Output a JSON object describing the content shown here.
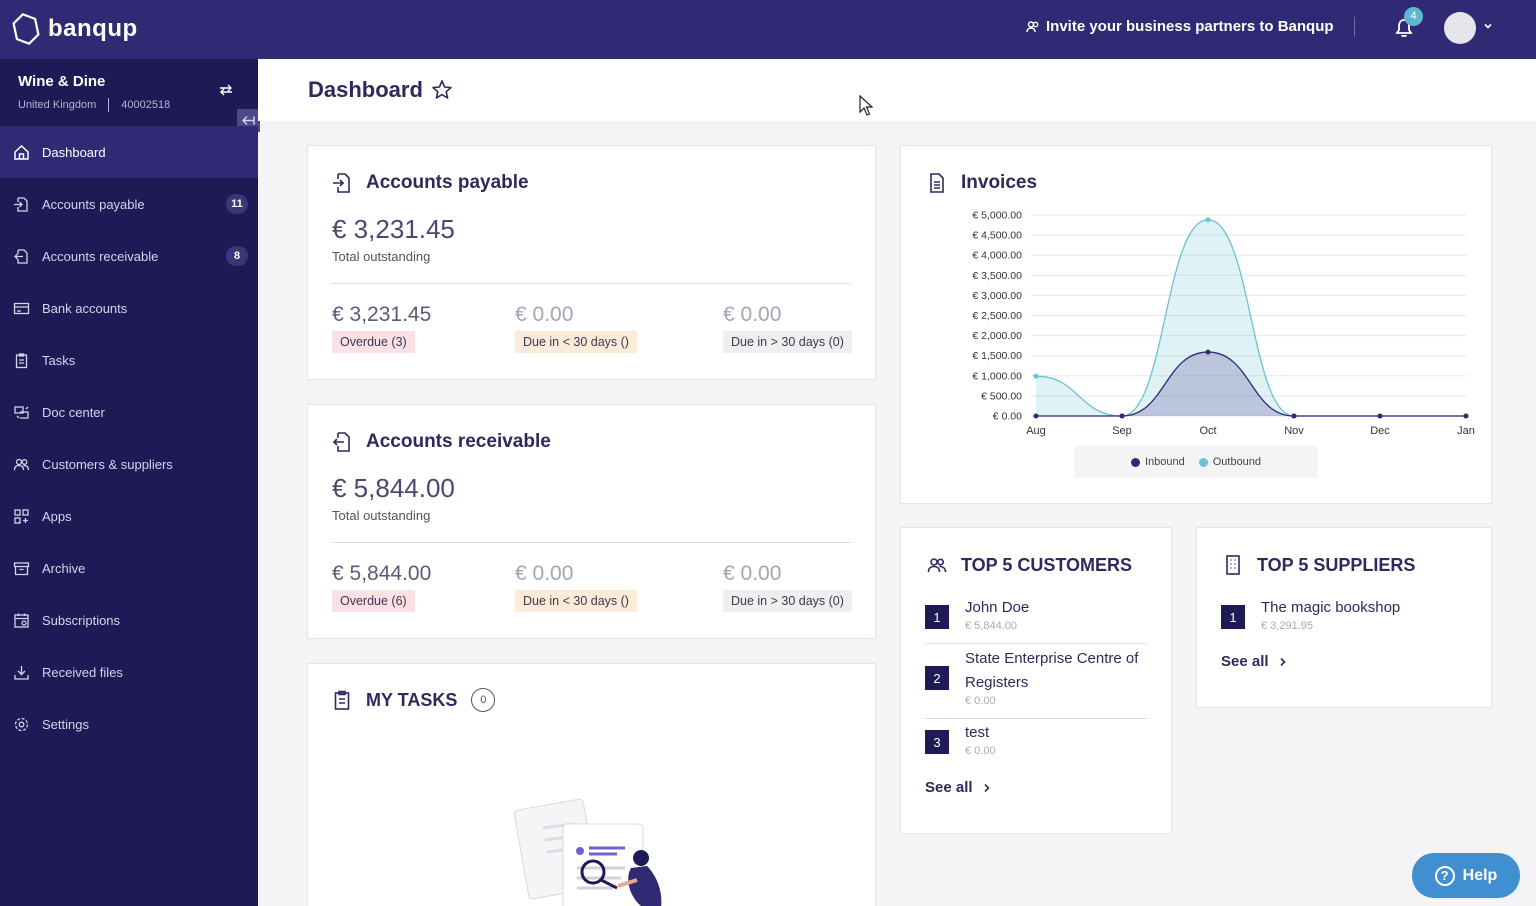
{
  "topbar": {
    "logo": "banqup",
    "invite": "Invite your business partners to Banqup",
    "notifications": "4"
  },
  "company": {
    "name": "Wine & Dine",
    "country": "United Kingdom",
    "id": "40002518"
  },
  "nav": [
    {
      "label": "Dashboard",
      "icon": "home-icon",
      "active": true
    },
    {
      "label": "Accounts payable",
      "icon": "file-in-icon",
      "badge": "11"
    },
    {
      "label": "Accounts receivable",
      "icon": "file-out-icon",
      "badge": "8"
    },
    {
      "label": "Bank accounts",
      "icon": "bank-card-icon"
    },
    {
      "label": "Tasks",
      "icon": "clipboard-icon"
    },
    {
      "label": "Doc center",
      "icon": "doc-center-icon"
    },
    {
      "label": "Customers & suppliers",
      "icon": "people-icon"
    },
    {
      "label": "Apps",
      "icon": "apps-icon"
    },
    {
      "label": "Archive",
      "icon": "archive-icon"
    },
    {
      "label": "Subscriptions",
      "icon": "calendar-icon"
    },
    {
      "label": "Received files",
      "icon": "download-icon"
    },
    {
      "label": "Settings",
      "icon": "gear-icon"
    }
  ],
  "page": {
    "title": "Dashboard"
  },
  "payable": {
    "title": "Accounts payable",
    "total": "€ 3,231.45",
    "total_label": "Total outstanding",
    "overdue_amount": "€ 3,231.45",
    "overdue_label": "Overdue (3)",
    "due_lt_amount": "€ 0.00",
    "due_lt_label": "Due in < 30 days ()",
    "due_gt_amount": "€ 0.00",
    "due_gt_label": "Due in > 30 days (0)"
  },
  "receivable": {
    "title": "Accounts receivable",
    "total": "€ 5,844.00",
    "total_label": "Total outstanding",
    "overdue_amount": "€ 5,844.00",
    "overdue_label": "Overdue (6)",
    "due_lt_amount": "€ 0.00",
    "due_lt_label": "Due in < 30 days ()",
    "due_gt_amount": "€ 0.00",
    "due_gt_label": "Due in > 30 days (0)"
  },
  "tasks": {
    "title": "MY TASKS",
    "count": "0"
  },
  "invoices": {
    "title": "Invoices"
  },
  "chart_data": {
    "type": "area",
    "categories": [
      "Aug",
      "Sep",
      "Oct",
      "Nov",
      "Dec",
      "Jan"
    ],
    "y_ticks": [
      "€ 0.00",
      "€ 500.00",
      "€ 1,000.00",
      "€ 1,500.00",
      "€ 2,000.00",
      "€ 2,500.00",
      "€ 3,000.00",
      "€ 3,500.00",
      "€ 4,000.00",
      "€ 4,500.00",
      "€ 5,000.00"
    ],
    "ylim": [
      0,
      5000
    ],
    "grid": true,
    "legend": "bottom",
    "series": [
      {
        "name": "Inbound",
        "color": "#2f2a73",
        "values": [
          0,
          0,
          1590,
          0,
          0,
          0
        ]
      },
      {
        "name": "Outbound",
        "color": "#6cc3d5",
        "values": [
          990,
          0,
          4880,
          0,
          0,
          0
        ]
      }
    ]
  },
  "customers": {
    "title": "TOP 5 CUSTOMERS",
    "items": [
      {
        "rank": "1",
        "name": "John Doe",
        "amount": "€ 5,844.00"
      },
      {
        "rank": "2",
        "name": "State Enterprise Centre of Registers",
        "amount": "€ 0.00"
      },
      {
        "rank": "3",
        "name": "test",
        "amount": "€ 0.00"
      }
    ],
    "see_all": "See all"
  },
  "suppliers": {
    "title": "TOP 5 SUPPLIERS",
    "items": [
      {
        "rank": "1",
        "name": "The magic bookshop",
        "amount": "€ 3,291.95"
      }
    ],
    "see_all": "See all"
  },
  "help": {
    "label": "Help"
  }
}
